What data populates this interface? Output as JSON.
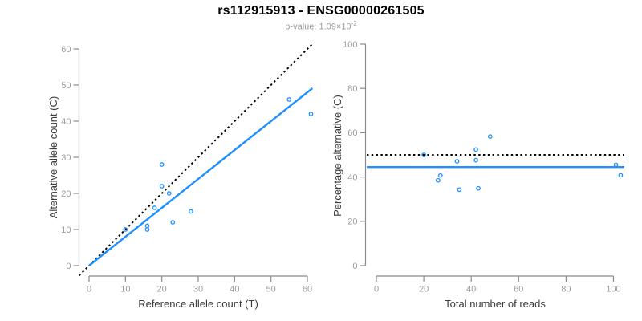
{
  "header": {
    "title": "rs112915913 - ENSG00000261505",
    "subtitle_main": "p-value: 1.09×10",
    "subtitle_exponent": "-2"
  },
  "colors": {
    "accent_blue": "#1E90FF",
    "reference_black": "#000000",
    "axis_line_gray": "#8a8a8a",
    "tick_label_gray": "#9c9c9c",
    "axis_title_gray": "#3c3c3c",
    "subtitle_gray": "#9a9a9a"
  },
  "chart_data": [
    {
      "type": "scatter",
      "panel": "left",
      "xlabel": "Reference allele count (T)",
      "ylabel": "Alternative allele count (C)",
      "xlim": [
        0,
        61
      ],
      "ylim": [
        0,
        60
      ],
      "xticks": [
        0,
        10,
        20,
        30,
        40,
        50,
        60
      ],
      "yticks": [
        0,
        10,
        20,
        30,
        40,
        50,
        60
      ],
      "grid": false,
      "points": [
        [
          10,
          10
        ],
        [
          16,
          10
        ],
        [
          16,
          11
        ],
        [
          18,
          16
        ],
        [
          20,
          22
        ],
        [
          20,
          28
        ],
        [
          22,
          20
        ],
        [
          23,
          12
        ],
        [
          28,
          15
        ],
        [
          55,
          46
        ],
        [
          61,
          42
        ]
      ],
      "lines": [
        {
          "name": "identity-line",
          "kind": "identity",
          "desc": "y = x",
          "style": "dotted",
          "color": "#000000"
        },
        {
          "name": "fit-line",
          "kind": "linear",
          "desc": "regression fit",
          "style": "solid",
          "color": "#1E90FF",
          "slope": 0.8,
          "intercept": 0,
          "x_start": 0,
          "x_end": 61.4
        }
      ]
    },
    {
      "type": "scatter",
      "panel": "right",
      "xlabel": "Total number of reads",
      "ylabel": "Percentage alternative (C)",
      "xlim": [
        0,
        103
      ],
      "ylim": [
        0,
        100
      ],
      "xticks": [
        0,
        20,
        40,
        60,
        80,
        100
      ],
      "yticks": [
        0,
        20,
        40,
        60,
        80,
        100
      ],
      "grid": false,
      "points": [
        [
          20,
          50
        ],
        [
          26,
          38.5
        ],
        [
          27,
          40.7
        ],
        [
          34,
          47.1
        ],
        [
          42,
          52.4
        ],
        [
          48,
          58.3
        ],
        [
          42,
          47.6
        ],
        [
          35,
          34.3
        ],
        [
          43,
          34.9
        ],
        [
          101,
          45.5
        ],
        [
          103,
          40.8
        ]
      ],
      "lines": [
        {
          "name": "reference-line",
          "kind": "hline",
          "desc": "50% null expectation",
          "style": "dotted",
          "color": "#000000",
          "y": 50
        },
        {
          "name": "fit-line",
          "kind": "hline",
          "desc": "fitted percentage",
          "style": "solid",
          "color": "#1E90FF",
          "y": 44.5
        }
      ]
    }
  ]
}
